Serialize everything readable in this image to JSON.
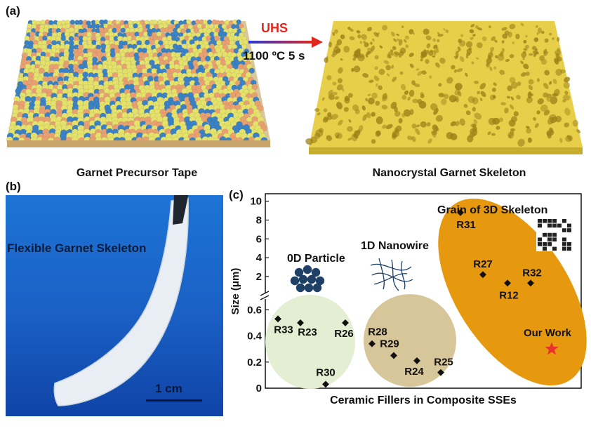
{
  "panel_a": {
    "label": "(a)",
    "process": "UHS",
    "condition": "1100 ºC 5 s",
    "left_caption": "Garnet Precursor Tape",
    "right_caption": "Nanocrystal Garnet Skeleton",
    "colors": {
      "blue": "#3b82c4",
      "orange": "#e9a071",
      "yellow": "#e4e26a",
      "skeleton": "#e8cf4a",
      "arrow_start": "#2a37d8",
      "arrow_end": "#e0261f"
    }
  },
  "panel_b": {
    "label": "(b)",
    "photo_text": "Flexible Garnet Skeleton",
    "scale_text": "1 cm",
    "colors": {
      "background": "#1a62c8",
      "tape": "#e8eef4"
    }
  },
  "panel_c": {
    "label": "(c)",
    "chart_data": {
      "type": "scatter",
      "title": "",
      "xlabel": "Ceramic Fillers in Composite SSEs",
      "ylabel": "Size (μm)",
      "y_axis": "broken",
      "y_ticks_lower": [
        0,
        0.2,
        0.4,
        0.6
      ],
      "y_ticks_upper": [
        2,
        4,
        6,
        8,
        10
      ],
      "ylim_lower": [
        0,
        0.65
      ],
      "ylim_upper": [
        0.8,
        10.5
      ],
      "groups": [
        {
          "name": "0D Particle",
          "color": "#e3eed3",
          "points": [
            {
              "label": "R33",
              "y": 0.53
            },
            {
              "label": "R23",
              "y": 0.5
            },
            {
              "label": "R26",
              "y": 0.5
            },
            {
              "label": "R30",
              "y": 0.03
            }
          ]
        },
        {
          "name": "1D Nanowire",
          "color": "#d7c69a",
          "points": [
            {
              "label": "R28",
              "y": 0.34
            },
            {
              "label": "R29",
              "y": 0.25
            },
            {
              "label": "R24",
              "y": 0.21
            },
            {
              "label": "R25",
              "y": 0.12
            }
          ]
        },
        {
          "name": "Grain of 3D Skeleton",
          "color": "#e6990f",
          "points": [
            {
              "label": "R31",
              "y": 8.8
            },
            {
              "label": "R27",
              "y": 2.2
            },
            {
              "label": "R12",
              "y": 1.3
            },
            {
              "label": "R32",
              "y": 1.3
            },
            {
              "label": "Our Work",
              "y": 0.3,
              "marker": "star",
              "color": "#e8312a"
            }
          ]
        }
      ]
    }
  }
}
